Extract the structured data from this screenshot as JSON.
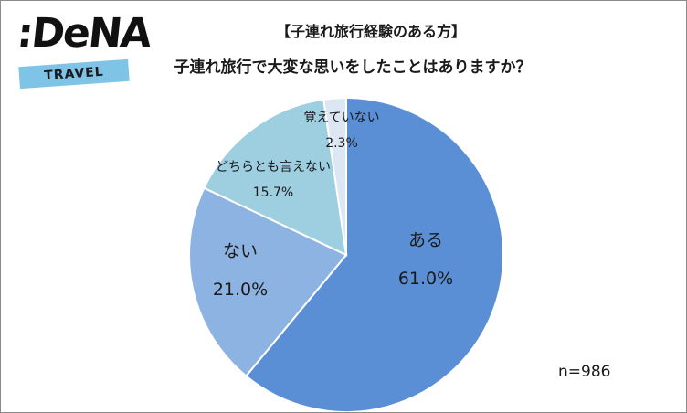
{
  "logo": {
    "brand": ":DeNA",
    "sub": "TRAVEL"
  },
  "colors": {
    "aru": "#5a8fd6",
    "nai": "#8db3e2",
    "dochira": "#9ecfe0",
    "oboete": "#dde7f3",
    "edge": "#ffffff"
  },
  "chart_data": {
    "type": "pie",
    "title": "【子連れ旅行経験のある方】",
    "subtitle": "子連れ旅行で大変な思いをしたことはありますか？",
    "note": "n=986",
    "slices": [
      {
        "label": "ある",
        "value": 61.0,
        "value_label": "61.0%",
        "color_key": "aru"
      },
      {
        "label": "ない",
        "value": 21.0,
        "value_label": "21.0%",
        "color_key": "nai"
      },
      {
        "label": "どちらとも言えない",
        "value": 15.7,
        "value_label": "15.7%",
        "color_key": "dochira"
      },
      {
        "label": "覚えていない",
        "value": 2.3,
        "value_label": "2.3%",
        "color_key": "oboete"
      }
    ]
  }
}
